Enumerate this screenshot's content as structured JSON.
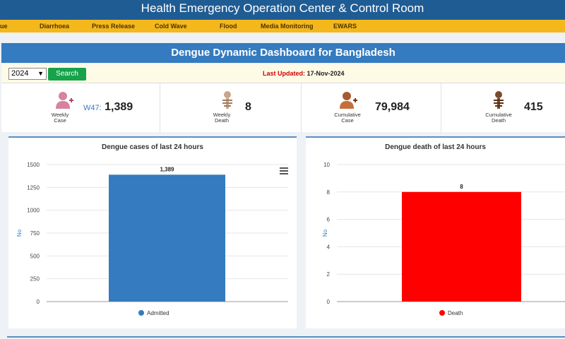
{
  "header": {
    "title": "Health Emergency Operation Center & Control Room"
  },
  "nav": {
    "items": [
      {
        "label": "ue"
      },
      {
        "label": "Diarrhoea"
      },
      {
        "label": "Press Release"
      },
      {
        "label": "Cold Wave"
      },
      {
        "label": "Flood"
      },
      {
        "label": "Media Monitoring"
      },
      {
        "label": "EWARS"
      }
    ]
  },
  "dashboard": {
    "title": "Dengue Dynamic Dashboard for Bangladesh"
  },
  "filters": {
    "year": "2024",
    "search_label": "Search",
    "last_updated_label": "Last Updated:",
    "last_updated_value": "17-Nov-2024"
  },
  "stats": {
    "weekly_case": {
      "caption_line1": "Weekly",
      "caption_line2": "Case",
      "week": "W47:",
      "value": "1,389"
    },
    "weekly_death": {
      "caption_line1": "Weekly",
      "caption_line2": "Death",
      "value": "8"
    },
    "cumulative_case": {
      "caption_line1": "Cumulative",
      "caption_line2": "Case",
      "value": "79,984"
    },
    "cumulative_death": {
      "caption_line1": "Cumulative",
      "caption_line2": "Death",
      "value": "415"
    }
  },
  "colors": {
    "cases_bar": "#347bbf",
    "death_bar": "#ff0000",
    "accent": "#1f5c94",
    "nav": "#f4b81c"
  },
  "chart_data": [
    {
      "type": "bar",
      "title": "Dengue cases of last 24 hours",
      "categories": [
        "Admitted"
      ],
      "series": [
        {
          "name": "Admitted",
          "values": [
            1389
          ],
          "labels": [
            "1,389"
          ],
          "color": "#347bbf"
        }
      ],
      "ylabel": "No",
      "ylim": [
        0,
        1500
      ],
      "yticks": [
        0,
        250,
        500,
        750,
        1000,
        1250,
        1500
      ],
      "grid": true,
      "legend": "bottom"
    },
    {
      "type": "bar",
      "title": "Dengue death of last 24 hours",
      "categories": [
        "Death"
      ],
      "series": [
        {
          "name": "Death",
          "values": [
            8
          ],
          "labels": [
            "8"
          ],
          "color": "#ff0000"
        }
      ],
      "ylabel": "No",
      "ylim": [
        0,
        10
      ],
      "yticks": [
        0,
        2,
        4,
        6,
        8,
        10
      ],
      "grid": true,
      "legend": "bottom"
    }
  ]
}
